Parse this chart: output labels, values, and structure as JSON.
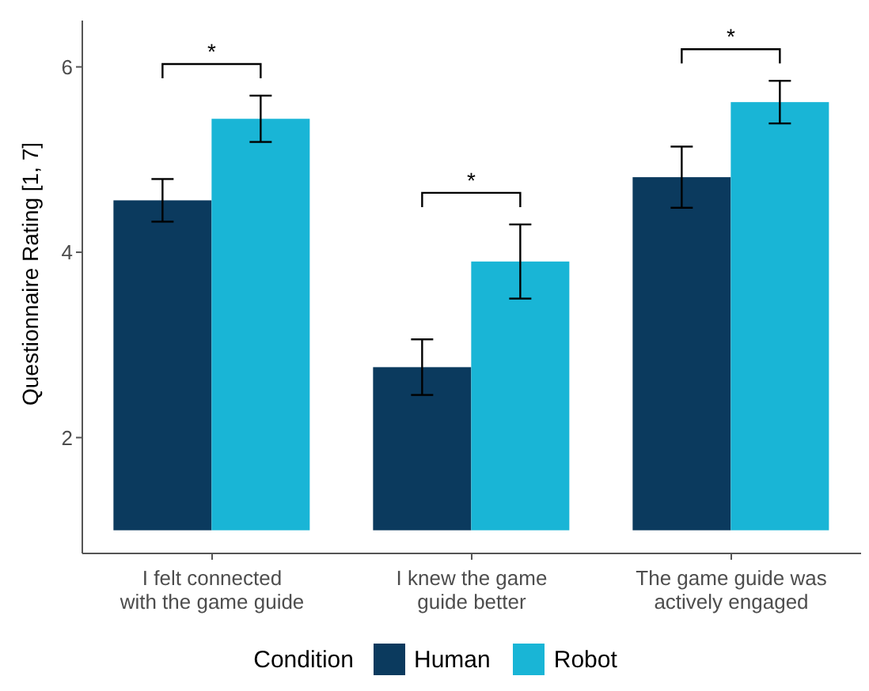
{
  "chart_data": {
    "type": "bar",
    "categories": [
      "I felt connected\nwith the game guide",
      "I knew the game\nguide better",
      "The game guide was\nactively engaged"
    ],
    "series": [
      {
        "name": "Human",
        "color": "#0b3a5e",
        "base": [
          1,
          1,
          1
        ],
        "values": [
          3.56,
          1.76,
          3.81
        ],
        "errors": [
          0.23,
          0.3,
          0.33
        ]
      },
      {
        "name": "Robot",
        "color": "#19b5d6",
        "base": [
          1,
          1,
          1
        ],
        "values": [
          4.44,
          2.9,
          4.62
        ],
        "errors": [
          0.25,
          0.4,
          0.23
        ]
      }
    ],
    "ylabel": "Questionnaire Rating [1, 7]",
    "legend_title": "Condition",
    "ylim": [
      0.75,
      6.5
    ],
    "yticks": [
      2,
      4,
      6
    ],
    "grid": false,
    "legend": "bottom",
    "annotations": [
      "*",
      "*",
      "*"
    ]
  }
}
